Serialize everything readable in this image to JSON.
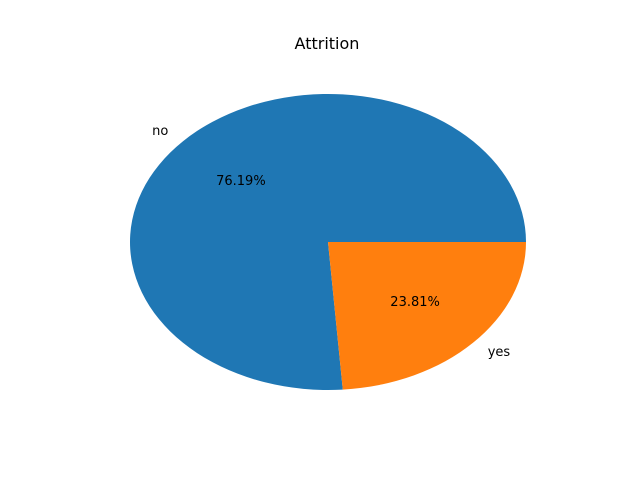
{
  "chart_data": {
    "type": "pie",
    "title": "Attrition",
    "slices": [
      {
        "label": "no",
        "value": 76.19,
        "pct_label": "76.19%",
        "color": "#1f77b4"
      },
      {
        "label": "yes",
        "value": 23.81,
        "pct_label": "23.81%",
        "color": "#ff7f0e"
      }
    ],
    "start_angle_deg": 0,
    "direction": "counterclockwise",
    "legend": "none"
  }
}
